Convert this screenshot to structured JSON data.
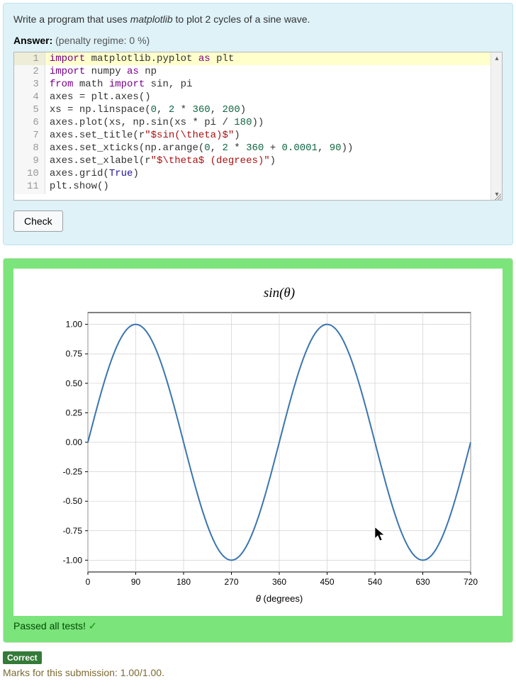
{
  "question": {
    "prompt_pre": "Write a program that uses ",
    "prompt_em": "matplotlib",
    "prompt_post": " to plot 2 cycles of a sine wave.",
    "answer_label": "Answer:",
    "penalty_text": "(penalty regime: 0 %)",
    "check_label": "Check"
  },
  "editor": {
    "lines": [
      [
        [
          "kw",
          "import"
        ],
        [
          "",
          " matplotlib.pyplot "
        ],
        [
          "kw",
          "as"
        ],
        [
          "",
          " plt"
        ]
      ],
      [
        [
          "kw",
          "import"
        ],
        [
          "",
          " numpy "
        ],
        [
          "kw",
          "as"
        ],
        [
          "",
          " np"
        ]
      ],
      [
        [
          "kw",
          "from"
        ],
        [
          "",
          " math "
        ],
        [
          "kw",
          "import"
        ],
        [
          "",
          " sin, pi"
        ]
      ],
      [
        [
          "",
          "axes = plt.axes()"
        ]
      ],
      [
        [
          "",
          "xs = np.linspace("
        ],
        [
          "num",
          "0"
        ],
        [
          "",
          ", "
        ],
        [
          "num",
          "2"
        ],
        [
          "",
          " * "
        ],
        [
          "num",
          "360"
        ],
        [
          "",
          ", "
        ],
        [
          "num",
          "200"
        ],
        [
          "",
          ")"
        ]
      ],
      [
        [
          "",
          "axes.plot(xs, np.sin(xs * pi / "
        ],
        [
          "num",
          "180"
        ],
        [
          "",
          "))"
        ]
      ],
      [
        [
          "",
          "axes.set_title(r"
        ],
        [
          "str",
          "\"$sin(\\theta)$\""
        ],
        [
          "",
          ")"
        ]
      ],
      [
        [
          "",
          "axes.set_xticks(np.arange("
        ],
        [
          "num",
          "0"
        ],
        [
          "",
          ", "
        ],
        [
          "num",
          "2"
        ],
        [
          "",
          " * "
        ],
        [
          "num",
          "360"
        ],
        [
          "",
          " + "
        ],
        [
          "num",
          "0.0001"
        ],
        [
          "",
          ", "
        ],
        [
          "num",
          "90"
        ],
        [
          "",
          "))"
        ]
      ],
      [
        [
          "",
          "axes.set_xlabel(r"
        ],
        [
          "str",
          "\"$\\theta$ (degrees)\""
        ],
        [
          "",
          ")"
        ]
      ],
      [
        [
          "",
          "axes.grid("
        ],
        [
          "bool",
          "True"
        ],
        [
          "",
          ")"
        ]
      ],
      [
        [
          "",
          "plt.show()"
        ]
      ]
    ]
  },
  "plot": {
    "title": "sin(θ)",
    "title_fontsize": 19,
    "title_style": "italic",
    "xlabel": "θ (degrees)",
    "label_fontsize": 13,
    "background_color": "#ffffff",
    "grid_color": "#d0d0d0",
    "axis_color": "#000000",
    "line_color": "#3b75af",
    "line_width": 2,
    "tick_fontsize": 12,
    "xlim": [
      0,
      720
    ],
    "ylim": [
      -1.1,
      1.1
    ],
    "xtick_step": 90,
    "yticks": [
      -1.0,
      -0.75,
      -0.5,
      -0.25,
      0.0,
      0.25,
      0.5,
      0.75,
      1.0
    ],
    "xticks": [
      0,
      90,
      180,
      270,
      360,
      450,
      540,
      630,
      720
    ],
    "n_points": 200,
    "cursor": {
      "x_deg": 540,
      "y_val": -0.72
    }
  },
  "result": {
    "passed_text": "Passed all tests!",
    "correct_label": "Correct",
    "marks_text": "Marks for this submission: 1.00/1.00."
  }
}
